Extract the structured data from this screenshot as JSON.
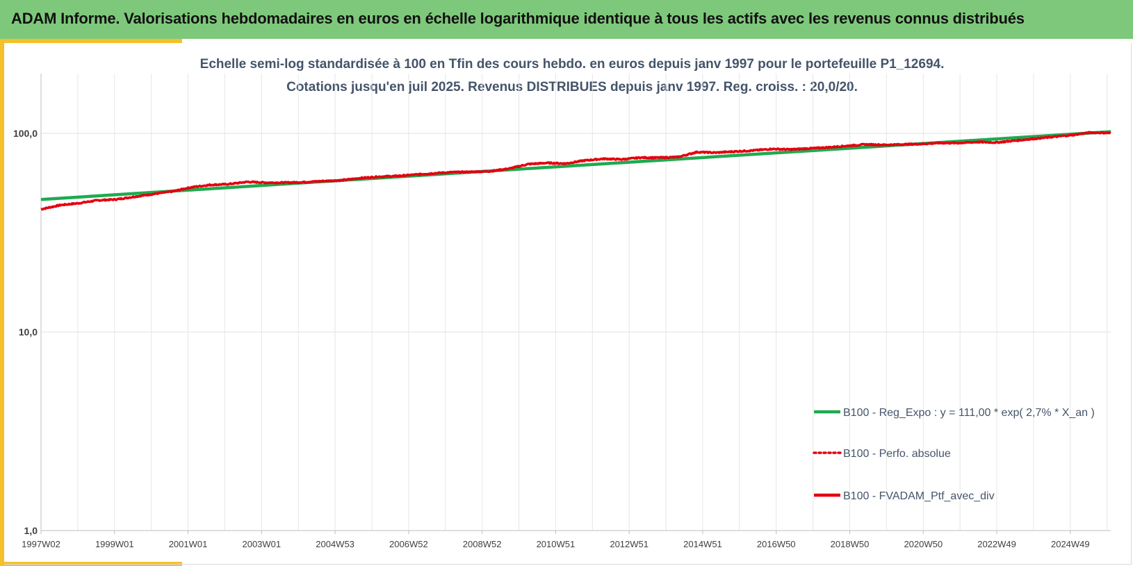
{
  "header": {
    "title": "ADAM Informe. Valorisations hebdomadaires en euros en échelle logarithmique identique à tous les actifs avec les revenus connus distribués"
  },
  "colors": {
    "banner": "#7ec87b",
    "accent_gold": "#f5c02a",
    "regression": "#1faa50",
    "portfolio": "#e3000f",
    "title_text": "#44546a"
  },
  "chart_data": {
    "type": "line",
    "title": "Echelle semi-log standardisée à 100 en Tfin des cours hebdo.  en euros depuis janv 1997 pour le portefeuille P1_12694.",
    "subtitle": "Cotations jusqu'en juil 2025. Revenus DISTRIBUES depuis janv 1997. Reg. croiss. : 20,0/20.",
    "xlabel": "",
    "ylabel": "",
    "y_scale": "log",
    "ylim": [
      1,
      200
    ],
    "y_ticks": [
      "1,0",
      "10,0",
      "100,0"
    ],
    "x_ticks": [
      "1997W02",
      "1999W01",
      "2001W01",
      "2003W01",
      "2004W53",
      "2006W52",
      "2008W52",
      "2010W51",
      "2012W51",
      "2014W51",
      "2016W50",
      "2018W50",
      "2020W50",
      "2022W49",
      "2024W49"
    ],
    "x_range_years": [
      1997.0,
      2025.55
    ],
    "grid": true,
    "legend_placement": "bottom-right",
    "series": [
      {
        "name": "B100 - Reg_Expo : y = 111,00 * exp( 2,7% *  X_an )",
        "style": "solid-green",
        "points": [
          [
            1997.0,
            46.5
          ],
          [
            2025.55,
            102.0
          ]
        ]
      },
      {
        "name": "B100 - Perfo. absolue",
        "style": "dotted-red",
        "points": []
      },
      {
        "name": "B100 - FVADAM_Ptf_avec_div",
        "style": "solid-red",
        "points": [
          [
            1997.0,
            41.5
          ],
          [
            1997.5,
            43.5
          ],
          [
            1998.0,
            44.5
          ],
          [
            1998.5,
            46.0
          ],
          [
            1999.0,
            46.5
          ],
          [
            1999.5,
            48.0
          ],
          [
            2000.0,
            49.5
          ],
          [
            2000.5,
            51.0
          ],
          [
            2001.0,
            53.5
          ],
          [
            2001.5,
            55.0
          ],
          [
            2002.0,
            55.5
          ],
          [
            2002.5,
            57.0
          ],
          [
            2003.0,
            56.5
          ],
          [
            2003.5,
            56.5
          ],
          [
            2004.0,
            56.8
          ],
          [
            2004.5,
            57.5
          ],
          [
            2005.0,
            58.0
          ],
          [
            2005.5,
            59.5
          ],
          [
            2006.0,
            60.5
          ],
          [
            2006.5,
            61.0
          ],
          [
            2007.0,
            62.0
          ],
          [
            2007.5,
            63.0
          ],
          [
            2008.0,
            63.8
          ],
          [
            2008.5,
            64.0
          ],
          [
            2009.0,
            64.5
          ],
          [
            2009.5,
            66.5
          ],
          [
            2010.0,
            70.0
          ],
          [
            2010.5,
            71.0
          ],
          [
            2011.0,
            70.5
          ],
          [
            2011.5,
            73.0
          ],
          [
            2012.0,
            74.5
          ],
          [
            2012.5,
            74.0
          ],
          [
            2013.0,
            75.5
          ],
          [
            2013.5,
            75.5
          ],
          [
            2014.0,
            76.0
          ],
          [
            2014.5,
            80.5
          ],
          [
            2015.0,
            80.0
          ],
          [
            2015.5,
            81.0
          ],
          [
            2016.0,
            82.0
          ],
          [
            2016.5,
            83.5
          ],
          [
            2017.0,
            83.0
          ],
          [
            2017.5,
            84.0
          ],
          [
            2018.0,
            85.0
          ],
          [
            2018.5,
            86.5
          ],
          [
            2019.0,
            88.0
          ],
          [
            2019.5,
            87.5
          ],
          [
            2020.0,
            88.0
          ],
          [
            2020.5,
            88.5
          ],
          [
            2021.0,
            89.5
          ],
          [
            2021.5,
            89.5
          ],
          [
            2022.0,
            90.5
          ],
          [
            2022.5,
            90.0
          ],
          [
            2023.0,
            92.0
          ],
          [
            2023.5,
            94.0
          ],
          [
            2024.0,
            96.0
          ],
          [
            2024.5,
            98.0
          ],
          [
            2025.0,
            101.0
          ],
          [
            2025.55,
            100.5
          ]
        ]
      }
    ]
  }
}
